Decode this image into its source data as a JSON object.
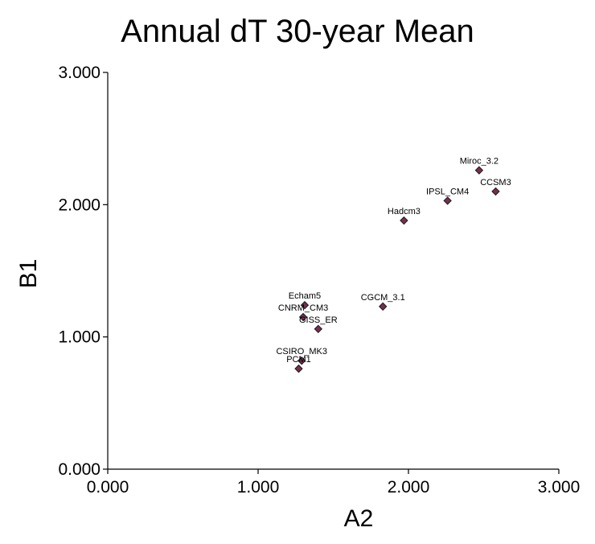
{
  "chart_data": {
    "type": "scatter",
    "title": "Annual dT 30-year Mean",
    "xlabel": "A2",
    "ylabel": "B1",
    "xlim": [
      0,
      3
    ],
    "ylim": [
      0,
      3
    ],
    "x_ticks": [
      "0.000",
      "1.000",
      "2.000",
      "3.000"
    ],
    "y_ticks": [
      "0.000",
      "1.000",
      "2.000",
      "3.000"
    ],
    "grid": false,
    "marker_color": "#7a2d4f",
    "points": [
      {
        "label": "Miroc_3.2",
        "x": 2.47,
        "y": 2.26
      },
      {
        "label": "CCSM3",
        "x": 2.58,
        "y": 2.1
      },
      {
        "label": "IPSL_CM4",
        "x": 2.26,
        "y": 2.03
      },
      {
        "label": "Hadcm3",
        "x": 1.97,
        "y": 1.88
      },
      {
        "label": "CGCM_3.1",
        "x": 1.83,
        "y": 1.23
      },
      {
        "label": "Echam5",
        "x": 1.31,
        "y": 1.24
      },
      {
        "label": "CNRM_CM3",
        "x": 1.3,
        "y": 1.15
      },
      {
        "label": "GISS_ER",
        "x": 1.4,
        "y": 1.06
      },
      {
        "label": "CSIRO_MK3",
        "x": 1.29,
        "y": 0.82
      },
      {
        "label": "PCM1",
        "x": 1.27,
        "y": 0.76
      }
    ]
  }
}
